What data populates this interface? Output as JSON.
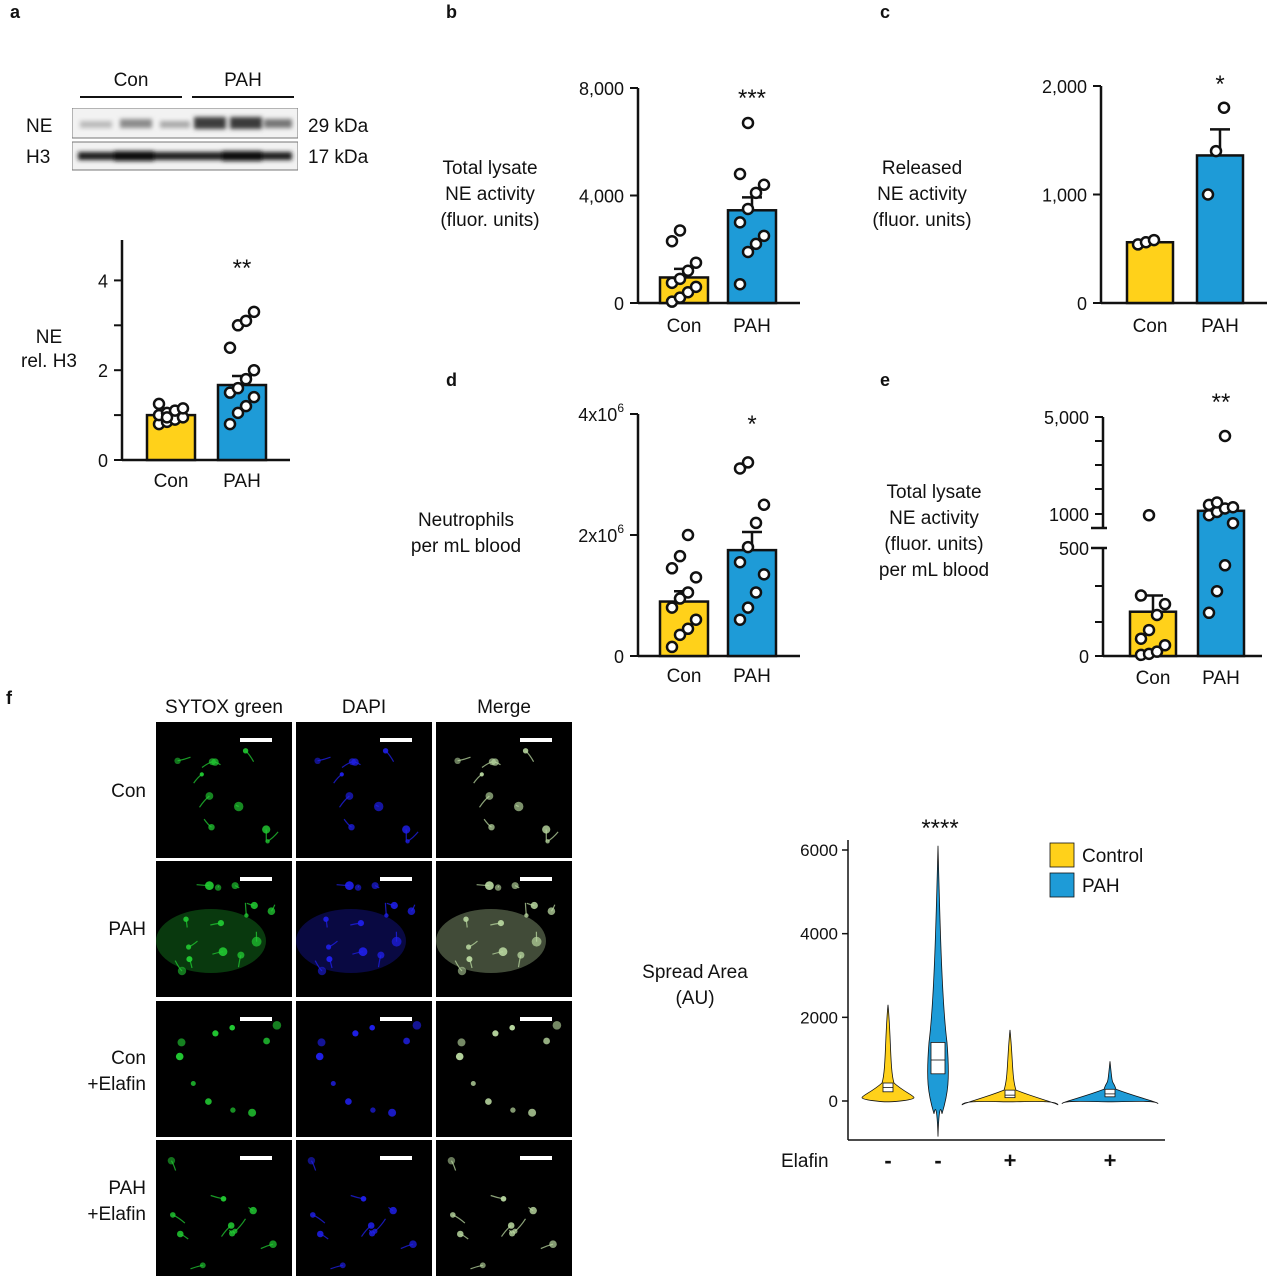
{
  "panel_letters": {
    "a": "a",
    "b": "b",
    "c": "c",
    "d": "d",
    "e": "e",
    "f": "f"
  },
  "blot": {
    "groups": [
      "Con",
      "PAH"
    ],
    "rows": [
      {
        "label": "NE",
        "size": "29 kDa"
      },
      {
        "label": "H3",
        "size": "17 kDa"
      }
    ]
  },
  "colors": {
    "con": "#FFD11A",
    "pah": "#1E9BD7",
    "sytox": "#22cc33",
    "dapi": "#2020ee",
    "merge": "#b9d8a0"
  },
  "chart_data": [
    {
      "id": "a",
      "type": "bar",
      "categories": [
        "Con",
        "PAH"
      ],
      "ylabel_lines": [
        "NE",
        "rel. H3"
      ],
      "yticks": [
        {
          "v": 0,
          "label": "0"
        },
        {
          "v": 2,
          "label": "2"
        },
        {
          "v": 4,
          "label": "4"
        }
      ],
      "yminor": [
        1,
        3
      ],
      "ylim": [
        0,
        4.9
      ],
      "means": [
        1.0,
        1.67
      ],
      "sem": [
        0.07,
        0.2
      ],
      "points": [
        [
          0.8,
          0.85,
          0.9,
          0.95,
          1.0,
          1.05,
          1.1,
          1.15,
          1.25,
          0.95
        ],
        [
          0.8,
          1.05,
          1.2,
          1.4,
          1.5,
          1.6,
          1.8,
          2.0,
          2.5,
          3.0,
          3.1,
          3.3
        ]
      ],
      "significance": "**"
    },
    {
      "id": "b",
      "type": "bar",
      "categories": [
        "Con",
        "PAH"
      ],
      "ylabel_lines": [
        "Total lysate",
        "NE activity",
        "(fluor. units)"
      ],
      "yticks": [
        {
          "v": 0,
          "label": "0"
        },
        {
          "v": 4000,
          "label": "4,000"
        },
        {
          "v": 8000,
          "label": "8,000"
        }
      ],
      "yminor": [],
      "ylim": [
        0,
        8000
      ],
      "means": [
        950,
        3450
      ],
      "sem": [
        320,
        480
      ],
      "points": [
        [
          50,
          200,
          400,
          600,
          750,
          900,
          1200,
          1500,
          2300,
          2700
        ],
        [
          700,
          1900,
          2200,
          2500,
          3000,
          3500,
          4100,
          4400,
          4800,
          6700
        ]
      ],
      "significance": "***"
    },
    {
      "id": "c",
      "type": "bar",
      "categories": [
        "Con",
        "PAH"
      ],
      "ylabel_lines": [
        "Released",
        "NE activity",
        "(fluor. units)"
      ],
      "yticks": [
        {
          "v": 0,
          "label": "0"
        },
        {
          "v": 1000,
          "label": "1,000"
        },
        {
          "v": 2000,
          "label": "2,000"
        }
      ],
      "yminor": [],
      "ylim": [
        0,
        2000
      ],
      "means": [
        560,
        1360
      ],
      "sem": [
        15,
        240
      ],
      "points": [
        [
          540,
          560,
          580
        ],
        [
          1000,
          1400,
          1800
        ]
      ],
      "significance": "*"
    },
    {
      "id": "d",
      "type": "bar",
      "categories": [
        "Con",
        "PAH"
      ],
      "ylabel_lines": [
        "Neutrophils",
        "per mL blood"
      ],
      "yticks": [
        {
          "v": 0,
          "label": "0"
        },
        {
          "v": 2000000,
          "label": "2x10",
          "exp": "6"
        },
        {
          "v": 4000000,
          "label": "4x10",
          "exp": "6"
        }
      ],
      "yminor": [],
      "ylim": [
        0,
        4000000
      ],
      "means": [
        900000,
        1750000
      ],
      "sem": [
        170000,
        300000
      ],
      "points": [
        [
          150000,
          350000,
          450000,
          600000,
          800000,
          950000,
          1050000,
          1300000,
          1450000,
          1650000,
          2000000
        ],
        [
          600000,
          800000,
          1050000,
          1350000,
          1550000,
          1800000,
          2200000,
          2500000,
          3100000,
          3200000
        ]
      ],
      "significance": "*"
    },
    {
      "id": "e",
      "type": "bar",
      "broken_axis": true,
      "categories": [
        "Con",
        "PAH"
      ],
      "ylabel_lines": [
        "Total lysate",
        "NE activity",
        "(fluor. units)",
        "per mL blood"
      ],
      "yticks": [
        {
          "v": 0,
          "label": "0"
        },
        {
          "v": 500,
          "label": "500"
        },
        {
          "v": 1000,
          "label": "1000"
        },
        {
          "v": 5000,
          "label": "5,000"
        }
      ],
      "ylim": [
        0,
        5000
      ],
      "means": [
        205,
        1050
      ],
      "sem": [
        75,
        120
      ],
      "points": [
        [
          5,
          10,
          20,
          50,
          80,
          120,
          190,
          240,
          280,
          900
        ],
        [
          200,
          300,
          420,
          650,
          900,
          1000,
          1150,
          1200,
          1300,
          1400,
          4200
        ]
      ],
      "significance": "**"
    },
    {
      "id": "f",
      "type": "violin",
      "ylabel_lines": [
        "Spread Area",
        "(AU)"
      ],
      "yticks": [
        0,
        2000,
        4000,
        6000
      ],
      "ylim": [
        -900,
        6200
      ],
      "xaxis_label": "Elafin",
      "groups": [
        {
          "group": "Control",
          "elafin": "-",
          "median": 320,
          "q1": 220,
          "q3": 430,
          "max": 2300,
          "min": -20
        },
        {
          "group": "PAH",
          "elafin": "-",
          "median": 980,
          "q1": 650,
          "q3": 1400,
          "max": 6100,
          "min": -850
        },
        {
          "group": "Control",
          "elafin": "+",
          "median": 140,
          "q1": 80,
          "q3": 260,
          "max": 1700,
          "min": -20
        },
        {
          "group": "PAH",
          "elafin": "+",
          "median": 170,
          "q1": 100,
          "q3": 280,
          "max": 950,
          "min": -20
        }
      ],
      "legend": [
        "Control",
        "PAH"
      ],
      "significance": "****"
    }
  ],
  "microscopy": {
    "columns": [
      "SYTOX green",
      "DAPI",
      "Merge"
    ],
    "rows": [
      [
        "Con"
      ],
      [
        "PAH"
      ],
      [
        "Con",
        "+Elafin"
      ],
      [
        "PAH",
        "+Elafin"
      ]
    ]
  }
}
